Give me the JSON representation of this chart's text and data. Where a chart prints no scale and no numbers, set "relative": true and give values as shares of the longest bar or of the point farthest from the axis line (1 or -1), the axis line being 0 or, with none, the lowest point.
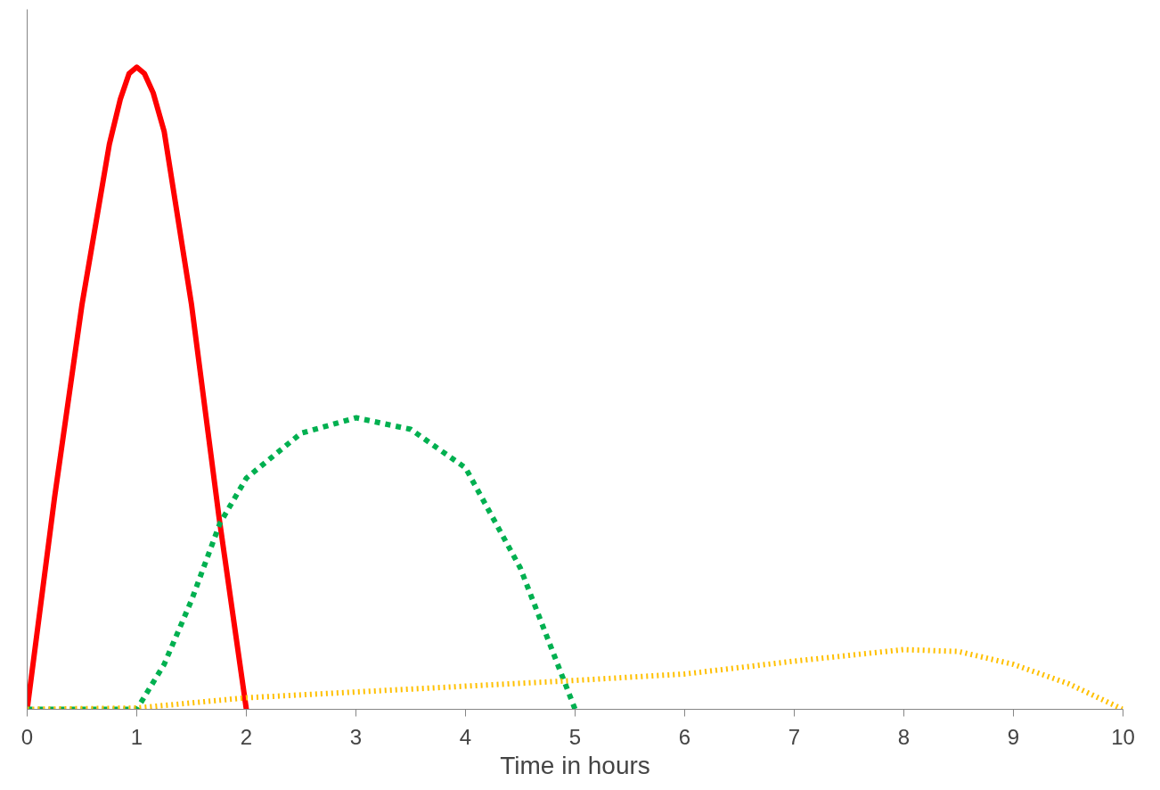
{
  "chart_data": {
    "type": "line",
    "relative": true,
    "xlabel": "Time in hours",
    "xlim": [
      0,
      10
    ],
    "xticks": [
      0,
      1,
      2,
      3,
      4,
      5,
      6,
      7,
      8,
      9,
      10
    ],
    "grid": false,
    "marker": "none",
    "series": [
      {
        "color": "#ff0000",
        "line_style": "solid",
        "x": [
          0,
          0.25,
          0.5,
          0.75,
          0.85,
          0.93,
          1,
          1.07,
          1.15,
          1.25,
          1.5,
          1.75,
          2
        ],
        "values": [
          0,
          0.33,
          0.63,
          0.88,
          0.95,
          0.99,
          1,
          0.99,
          0.96,
          0.9,
          0.63,
          0.3,
          0
        ]
      },
      {
        "color": "#00b050",
        "line_style": "dashed",
        "x": [
          0,
          1,
          1.25,
          1.5,
          1.76,
          2,
          2.5,
          3,
          3.5,
          4,
          4.5,
          5
        ],
        "values": [
          0,
          0,
          0.07,
          0.17,
          0.29,
          0.36,
          0.43,
          0.454,
          0.436,
          0.376,
          0.22,
          0
        ]
      },
      {
        "color": "#ffc000",
        "line_style": "dotted",
        "x": [
          0,
          1,
          2,
          3,
          4,
          5,
          6,
          7,
          8,
          8.5,
          9,
          9.5,
          10
        ],
        "values": [
          0,
          0.002,
          0.018,
          0.027,
          0.036,
          0.045,
          0.055,
          0.075,
          0.093,
          0.09,
          0.07,
          0.04,
          0
        ]
      }
    ]
  }
}
